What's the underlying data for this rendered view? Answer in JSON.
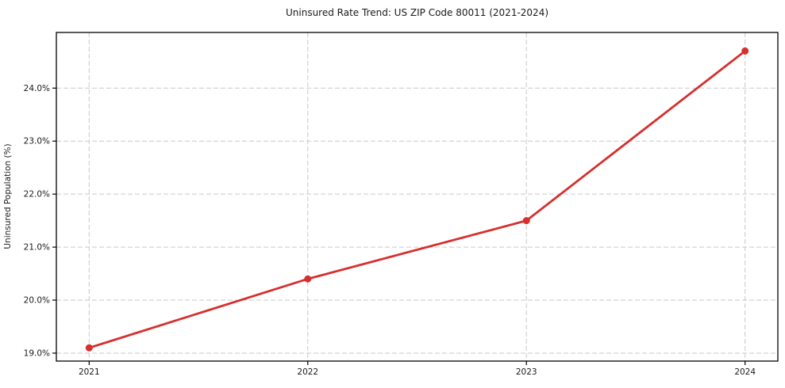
{
  "chart_data": {
    "type": "line",
    "title": "Uninsured Rate Trend: US ZIP Code 80011 (2021-2024)",
    "xlabel": "",
    "ylabel": "Uninsured Population (%)",
    "categories": [
      "2021",
      "2022",
      "2023",
      "2024"
    ],
    "x": [
      2021,
      2022,
      2023,
      2024
    ],
    "series": [
      {
        "name": "Uninsured Population (%)",
        "values": [
          19.1,
          20.4,
          21.5,
          24.7
        ],
        "color": "#d62f2e",
        "marker": "circle"
      }
    ],
    "axes": {
      "xlim": [
        2020.85,
        2024.15
      ],
      "ylim": [
        18.85,
        25.05
      ],
      "xticks": [
        {
          "value": 2021,
          "label": "2021"
        },
        {
          "value": 2022,
          "label": "2022"
        },
        {
          "value": 2023,
          "label": "2023"
        },
        {
          "value": 2024,
          "label": "2024"
        }
      ],
      "yticks": [
        {
          "value": 19.0,
          "label": "19.0%"
        },
        {
          "value": 20.0,
          "label": "20.0%"
        },
        {
          "value": 21.0,
          "label": "21.0%"
        },
        {
          "value": 22.0,
          "label": "22.0%"
        },
        {
          "value": 23.0,
          "label": "23.0%"
        },
        {
          "value": 24.0,
          "label": "24.0%"
        }
      ],
      "grid": true,
      "grid_style": "dashed",
      "legend": "none"
    },
    "style": {
      "line_color": "#d62f2e",
      "grid_color": "#c9c9c9",
      "spine_color": "#000000",
      "background_color": "#ffffff",
      "text_color": "#1a1a1a"
    }
  }
}
